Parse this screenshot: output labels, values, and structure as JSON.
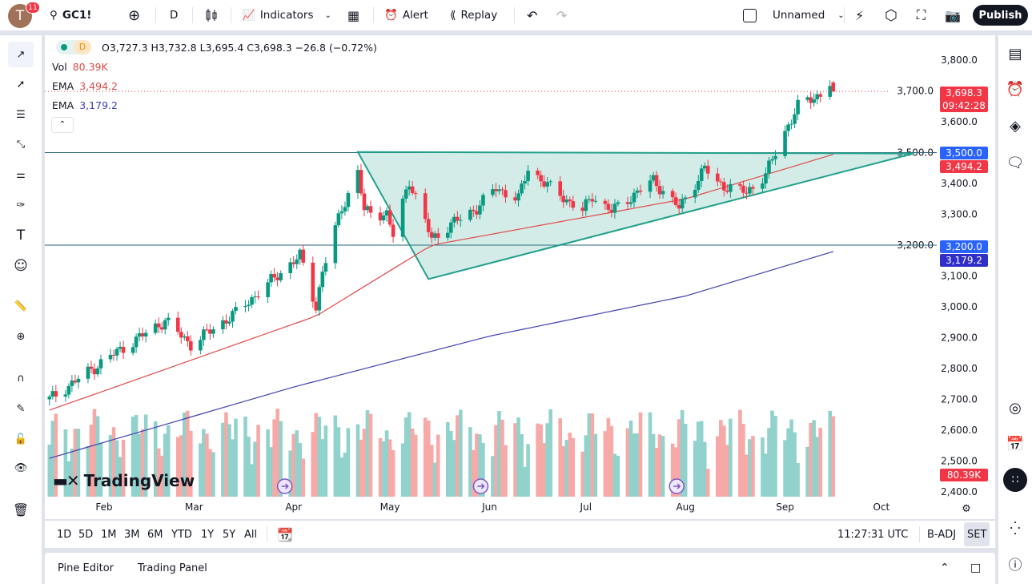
{
  "topbar": {
    "avatar_letter": "T",
    "notifications": "11",
    "symbol": "GC1!",
    "interval": "D",
    "indicators": "Indicators",
    "alert": "Alert",
    "replay": "Replay",
    "layout_name": "Unnamed",
    "publish": "Publish"
  },
  "legend": {
    "ohlc": "O3,727.3 H3,732.8 L3,695.4 C3,698.3 −26.8 (−0.72%)",
    "interval_badge": "D",
    "vol_label": "Vol",
    "vol_value": "80.39K",
    "ema1_label": "EMA",
    "ema1_value": "3,494.2",
    "ema2_label": "EMA",
    "ema2_value": "3,179.2"
  },
  "colors": {
    "up": "#089981",
    "down": "#f23645",
    "vol_up": "#92d2cc",
    "vol_down": "#f7a9a7",
    "ema_fast": "#e04a4a",
    "ema_slow": "#3f3fb0",
    "hline": "#2a6478",
    "triangle": "#22a08a",
    "accent": "#2962ff"
  },
  "price_axis": {
    "ticks": [
      "3,800.0",
      "3,700.0",
      "3,600.0",
      "3,500.0",
      "3,400.0",
      "3,300.0",
      "3,200.0",
      "3,100.0",
      "3,000.0",
      "2,900.0",
      "2,800.0",
      "2,700.0",
      "2,600.0",
      "2,500.0",
      "2,400.0"
    ],
    "badges": {
      "last_price": "3,698.3",
      "countdown": "09:42:28",
      "line1": "3,500.0",
      "ema1": "3,494.2",
      "line2": "3,200.0",
      "ema2": "3,179.2",
      "volume": "80.39K"
    }
  },
  "time_axis": {
    "labels": [
      "Feb",
      "Mar",
      "Apr",
      "May",
      "Jun",
      "Jul",
      "Aug",
      "Sep",
      "Oct"
    ]
  },
  "watermark": "TradingView",
  "chart_data": {
    "type": "candlestick",
    "symbol": "GC1!",
    "approx_close": [
      [
        "2025-01-15",
        2700
      ],
      [
        "2025-02-03",
        2840
      ],
      [
        "2025-02-20",
        2955
      ],
      [
        "2025-02-28",
        2878
      ],
      [
        "2025-03-14",
        2980
      ],
      [
        "2025-03-31",
        3140
      ],
      [
        "2025-04-03",
        3165
      ],
      [
        "2025-04-08",
        3000
      ],
      [
        "2025-04-10",
        3115
      ],
      [
        "2025-04-16",
        3320
      ],
      [
        "2025-04-21",
        3436
      ],
      [
        "2025-04-23",
        3310
      ],
      [
        "2025-04-30",
        3300
      ],
      [
        "2025-05-02",
        3230
      ],
      [
        "2025-05-07",
        3410
      ],
      [
        "2025-05-14",
        3220
      ],
      [
        "2025-05-19",
        3260
      ],
      [
        "2025-05-28",
        3320
      ],
      [
        "2025-06-03",
        3385
      ],
      [
        "2025-06-10",
        3350
      ],
      [
        "2025-06-13",
        3450
      ],
      [
        "2025-06-20",
        3385
      ],
      [
        "2025-06-30",
        3310
      ],
      [
        "2025-07-03",
        3360
      ],
      [
        "2025-07-09",
        3310
      ],
      [
        "2025-07-22",
        3410
      ],
      [
        "2025-07-30",
        3320
      ],
      [
        "2025-08-07",
        3450
      ],
      [
        "2025-08-11",
        3400
      ],
      [
        "2025-08-20",
        3370
      ],
      [
        "2025-08-26",
        3430
      ],
      [
        "2025-09-02",
        3590
      ],
      [
        "2025-09-05",
        3650
      ],
      [
        "2025-09-12",
        3690
      ],
      [
        "2025-09-15",
        3727.3
      ]
    ],
    "last_candle": {
      "open": 3727.3,
      "high": 3732.8,
      "low": 3695.4,
      "close": 3698.3
    },
    "ema_fast": [
      [
        "2025-01-15",
        2665
      ],
      [
        "2025-04-08",
        2970
      ],
      [
        "2025-05-14",
        3200
      ],
      [
        "2025-08-01",
        3350
      ],
      [
        "2025-09-16",
        3494.2
      ]
    ],
    "ema_slow": [
      [
        "2025-01-15",
        2509
      ],
      [
        "2025-04-01",
        2740
      ],
      [
        "2025-06-01",
        2905
      ],
      [
        "2025-08-01",
        3035
      ],
      [
        "2025-09-16",
        3179.2
      ]
    ],
    "horizontal_lines": [
      3500,
      3200
    ],
    "triangle": [
      [
        "2025-04-21",
        3502
      ],
      [
        "2025-05-13",
        3090
      ],
      [
        "2025-10-11",
        3497
      ]
    ],
    "ylim": [
      2400,
      3800
    ]
  },
  "range": {
    "buttons": [
      "1D",
      "5D",
      "1M",
      "3M",
      "6M",
      "YTD",
      "1Y",
      "5Y",
      "All"
    ],
    "clock": "11:27:31 UTC",
    "badj": "B-ADJ",
    "set": "SET"
  },
  "bottom": {
    "pine": "Pine Editor",
    "trading": "Trading Panel"
  }
}
